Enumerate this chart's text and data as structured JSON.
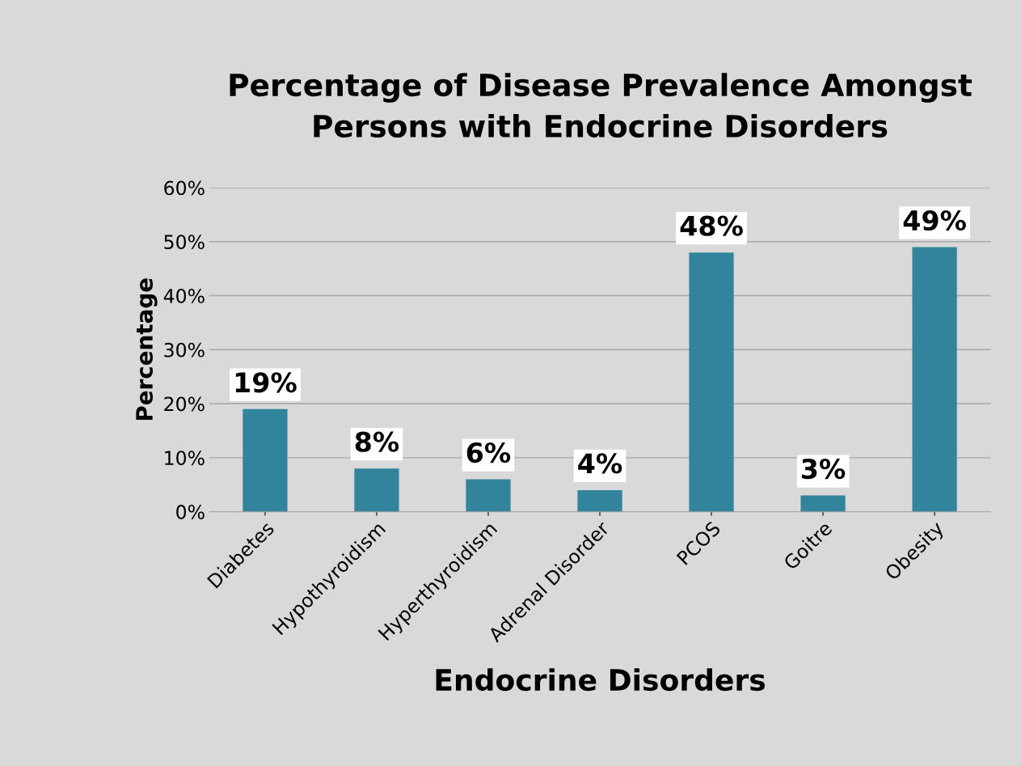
{
  "chart_data": {
    "type": "bar",
    "title": "Percentage of Disease Prevalence Amongst\nPersons with Endocrine Disorders",
    "xlabel": "Endocrine Disorders",
    "ylabel": "Percentage",
    "categories": [
      "Diabetes",
      "Hypothyroidism",
      "Hyperthyroidism",
      "Adrenal Disorder",
      "PCOS",
      "Goitre",
      "Obesity"
    ],
    "values": [
      19,
      8,
      6,
      4,
      48,
      3,
      49
    ],
    "value_labels": [
      "19%",
      "8%",
      "6%",
      "4%",
      "48%",
      "3%",
      "49%"
    ],
    "color": "#31849b",
    "ylim": [
      0,
      60
    ],
    "yticks": [
      {
        "value": 0,
        "label": "0%"
      },
      {
        "value": 10,
        "label": "10%"
      },
      {
        "value": 20,
        "label": "20%"
      },
      {
        "value": 30,
        "label": "30%"
      },
      {
        "value": 40,
        "label": "40%"
      },
      {
        "value": 50,
        "label": "50%"
      },
      {
        "value": 60,
        "label": "60%"
      }
    ],
    "grid": "y",
    "legend": false
  }
}
